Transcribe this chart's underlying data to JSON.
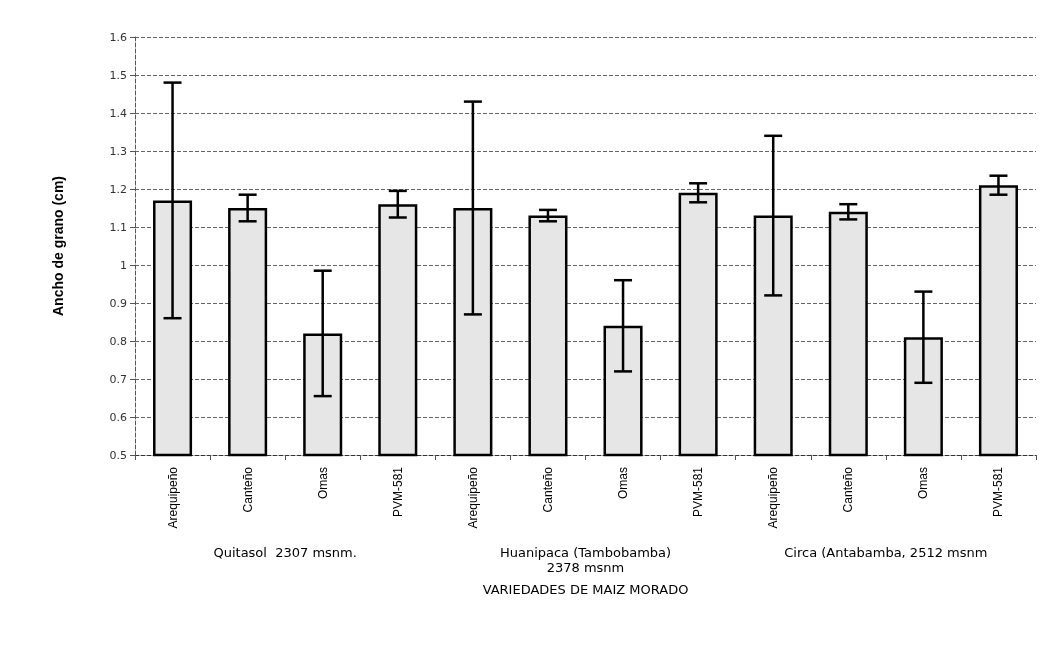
{
  "chart_data": {
    "type": "bar",
    "categories": [
      "Arequipeño",
      "Canteño",
      "Omas",
      "PVM-581",
      "Arequipeño",
      "Canteño",
      "Omas",
      "PVM-581",
      "Arequipeño",
      "Canteño",
      "Omas",
      "PVM-581"
    ],
    "values": [
      1.17,
      1.15,
      0.82,
      1.16,
      1.15,
      1.13,
      0.84,
      1.19,
      1.13,
      1.14,
      0.81,
      1.21
    ],
    "errors": [
      0.31,
      0.035,
      0.165,
      0.035,
      0.28,
      0.015,
      0.12,
      0.025,
      0.21,
      0.02,
      0.12,
      0.025
    ],
    "color": "#e6e6e6",
    "ylabel": "Ancho de grano (cm)",
    "xlabel": "VARIEDADES DE MAIZ MORADO",
    "annotations": [
      "Quitasol  2307 msnm.",
      "Huanipaca (Tambobamba)\n2378 msnm",
      "Circa (Antabamba, 2512 msnm"
    ],
    "ylim": [
      0.5,
      1.6
    ],
    "yticks": [
      0.5,
      0.6,
      0.7,
      0.8,
      0.9,
      1,
      1.1,
      1.2,
      1.3,
      1.4,
      1.5,
      1.6
    ],
    "grid": "y"
  }
}
